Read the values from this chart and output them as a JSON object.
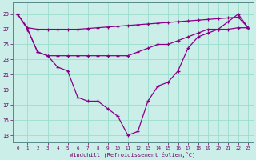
{
  "background_color": "#cceee8",
  "grid_color": "#99ddcc",
  "line_color": "#880088",
  "xlim": [
    -0.5,
    23.5
  ],
  "ylim": [
    12,
    30.5
  ],
  "yticks": [
    13,
    15,
    17,
    19,
    21,
    23,
    25,
    27,
    29
  ],
  "xticks": [
    0,
    1,
    2,
    3,
    4,
    5,
    6,
    7,
    8,
    9,
    10,
    11,
    12,
    13,
    14,
    15,
    16,
    17,
    18,
    19,
    20,
    21,
    22,
    23
  ],
  "xlabel": "Windchill (Refroidissement éolien,°C)",
  "line1_x": [
    0,
    1,
    2,
    3,
    4,
    5,
    6,
    7,
    8,
    9,
    10,
    11,
    12,
    13,
    14,
    15,
    16,
    17,
    18,
    19,
    20,
    21,
    22,
    23
  ],
  "line1_y": [
    29,
    27.2,
    27,
    27,
    27,
    27,
    27,
    27.1,
    27.2,
    27.3,
    27.4,
    27.5,
    27.6,
    27.7,
    27.8,
    27.9,
    28,
    28.1,
    28.2,
    28.3,
    28.4,
    28.5,
    28.6,
    27.2
  ],
  "line2_x": [
    0,
    1,
    2,
    3,
    4,
    5,
    6,
    7,
    8,
    9,
    10,
    11,
    12,
    13,
    14,
    15,
    16,
    17,
    18,
    19,
    20,
    21,
    22,
    23
  ],
  "line2_y": [
    29,
    27,
    24,
    23.5,
    22,
    21.5,
    18,
    17.5,
    17.5,
    16.5,
    15.5,
    13,
    13.5,
    17.5,
    19.5,
    20,
    21.5,
    24.5,
    26,
    26.5,
    27,
    28,
    29,
    27.2
  ],
  "line3_x": [
    1,
    2,
    3,
    4,
    5,
    6,
    7,
    8,
    9,
    10,
    11,
    12,
    13,
    14,
    15,
    16,
    17,
    18,
    19,
    20,
    21,
    22,
    23
  ],
  "line3_y": [
    27,
    24,
    23.5,
    23.5,
    23.5,
    23.5,
    23.5,
    23.5,
    23.5,
    23.5,
    23.5,
    24,
    24.5,
    25,
    25,
    25.5,
    26,
    26.5,
    27,
    27,
    27,
    27.2,
    27.2
  ]
}
